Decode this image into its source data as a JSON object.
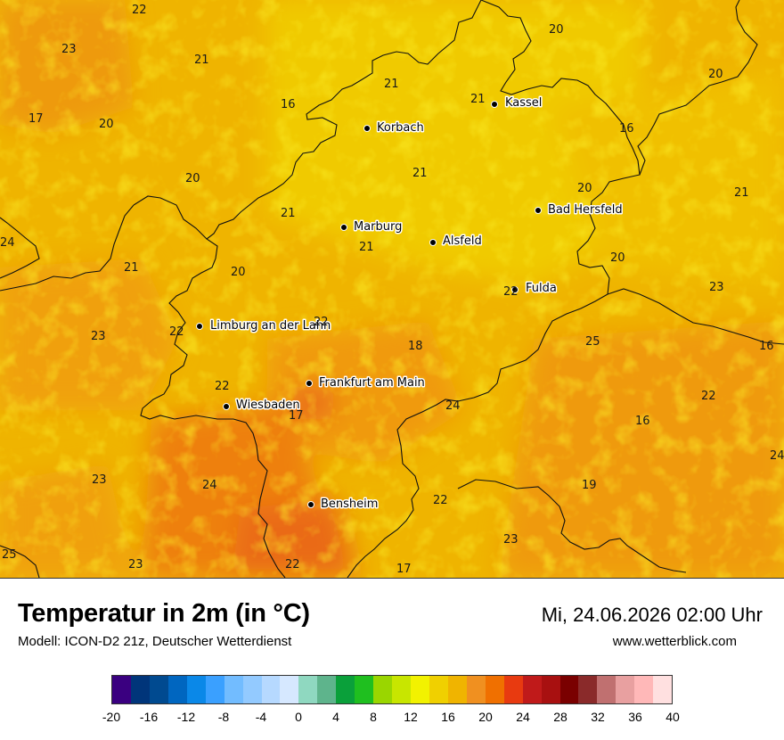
{
  "title": "Temperatur in 2m (in °C)",
  "model": "Modell: ICON-D2 21z, Deutscher Wetterdienst",
  "datetime": "Mi, 24.06.2026 02:00 Uhr",
  "website": "www.wetterblick.com",
  "cities": [
    {
      "name": "Kassel"
    },
    {
      "name": "Korbach"
    },
    {
      "name": "Bad Hersfeld"
    },
    {
      "name": "Marburg"
    },
    {
      "name": "Alsfeld"
    },
    {
      "name": "Fulda"
    },
    {
      "name": "Limburg an der Lahn"
    },
    {
      "name": "Frankfurt am Main"
    },
    {
      "name": "Wiesbaden"
    },
    {
      "name": "Bensheim"
    }
  ],
  "values": [
    "22",
    "23",
    "21",
    "17",
    "20",
    "16",
    "21",
    "21",
    "20",
    "16",
    "20",
    "21",
    "20",
    "24",
    "21",
    "21",
    "21",
    "20",
    "20",
    "21",
    "20",
    "23",
    "22",
    "22",
    "23",
    "22",
    "16",
    "18",
    "25",
    "22",
    "17",
    "24",
    "22",
    "16",
    "24",
    "23",
    "24",
    "22",
    "19",
    "23",
    "25",
    "23",
    "22",
    "17"
  ],
  "legend": {
    "colors": [
      "#3a0080",
      "#00357a",
      "#004a90",
      "#0066c0",
      "#0a88e8",
      "#3aa0ff",
      "#72bcff",
      "#93caff",
      "#b6d9ff",
      "#d6e8ff",
      "#8fd8c0",
      "#5eb48c",
      "#0aa03a",
      "#1fbf1f",
      "#9ad600",
      "#c8e600",
      "#f2f200",
      "#f0d000",
      "#f0b400",
      "#f09020",
      "#f07000",
      "#e83a10",
      "#c01a1a",
      "#a81010",
      "#7a0000",
      "#8a2a2a",
      "#c07070",
      "#e8a0a0",
      "#ffb8b8",
      "#ffe0e0"
    ],
    "ticks": [
      "-20",
      "-16",
      "-12",
      "-8",
      "-4",
      "0",
      "4",
      "8",
      "12",
      "16",
      "20",
      "24",
      "28",
      "32",
      "36",
      "40"
    ]
  }
}
